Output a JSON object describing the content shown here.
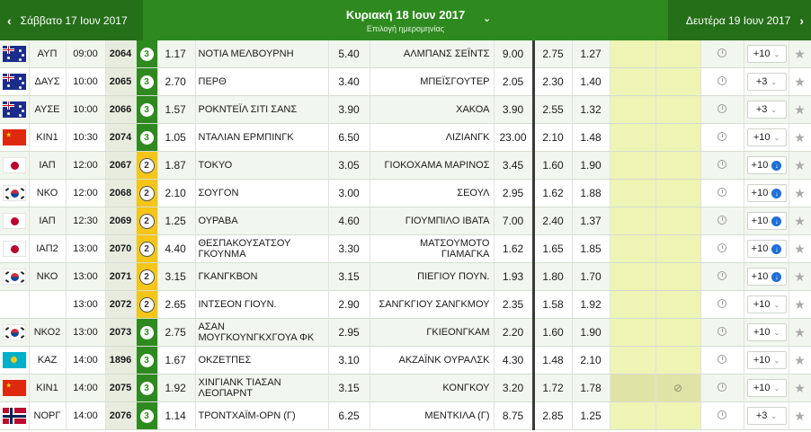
{
  "header": {
    "prev_date": "Σάββατο 17 Ιουν 2017",
    "current_date": "Κυριακή 18 Ιουν 2017",
    "date_picker_hint": "Επιλογή ημερομηνίας",
    "next_date": "Δευτέρα 19 Ιουν 2017",
    "prev_arrow": "‹",
    "next_arrow": "›",
    "dropdown_glyph": "⌄"
  },
  "matches": [
    {
      "flag": "au",
      "comp": "ΑΥΠ",
      "time": "09:00",
      "code": "2064",
      "min": "3",
      "o1": "1.17",
      "home": "ΝΟΤΙΑ ΜΕΛΒΟΥΡΝΗ",
      "ox": "5.40",
      "away": "ΑΛΜΠΑΝΣ ΣΕΪΝΤΣ",
      "o2": "9.00",
      "u": "2.75",
      "ov": "1.27",
      "markets": "+10",
      "live": false
    },
    {
      "flag": "au",
      "comp": "ΔΑΥΣ",
      "time": "10:00",
      "code": "2065",
      "min": "3",
      "o1": "2.70",
      "home": "ΠΕΡΘ",
      "ox": "3.40",
      "away": "ΜΠΕΪΣΓΟΥΤΕΡ",
      "o2": "2.05",
      "u": "2.30",
      "ov": "1.40",
      "markets": "+3",
      "live": false
    },
    {
      "flag": "au",
      "comp": "ΑΥΣΕ",
      "time": "10:00",
      "code": "2066",
      "min": "3",
      "o1": "1.57",
      "home": "ΡΟΚΝΤΕΪΛ ΣΙΤΙ ΣΑΝΣ",
      "ox": "3.90",
      "away": "ΧΑΚΟΑ",
      "o2": "3.90",
      "u": "2.55",
      "ov": "1.32",
      "markets": "+3",
      "live": false
    },
    {
      "flag": "cn",
      "comp": "ΚΙΝ1",
      "time": "10:30",
      "code": "2074",
      "min": "3",
      "o1": "1.05",
      "home": "ΝΤΑΛΙΑΝ ΕΡΜΠΙΝΓΚ",
      "ox": "6.50",
      "away": "ΛΙΖΙΑΝΓΚ",
      "o2": "23.00",
      "u": "2.10",
      "ov": "1.48",
      "markets": "+10",
      "live": false
    },
    {
      "flag": "jp",
      "comp": "ΙΑΠ",
      "time": "12:00",
      "code": "2067",
      "min": "2",
      "o1": "1.87",
      "home": "ΤΟΚΥΟ",
      "ox": "3.05",
      "away": "ΓΙΟΚΟΧΑΜΑ ΜΑΡΙΝΟΣ",
      "o2": "3.45",
      "u": "1.60",
      "ov": "1.90",
      "markets": "+10",
      "live": true
    },
    {
      "flag": "kr",
      "comp": "ΝΚΟ",
      "time": "12:00",
      "code": "2068",
      "min": "2",
      "o1": "2.10",
      "home": "ΣΟΥΓΟΝ",
      "ox": "3.00",
      "away": "ΣΕΟΥΛ",
      "o2": "2.95",
      "u": "1.62",
      "ov": "1.88",
      "markets": "+10",
      "live": true
    },
    {
      "flag": "jp",
      "comp": "ΙΑΠ",
      "time": "12:30",
      "code": "2069",
      "min": "2",
      "o1": "1.25",
      "home": "ΟΥΡΑΒΑ",
      "ox": "4.60",
      "away": "ΓΙΟΥΜΠΙΛΟ ΙΒΑΤΑ",
      "o2": "7.00",
      "u": "2.40",
      "ov": "1.37",
      "markets": "+10",
      "live": true
    },
    {
      "flag": "jp",
      "comp": "ΙΑΠ2",
      "time": "13:00",
      "code": "2070",
      "min": "2",
      "o1": "4.40",
      "home": "ΘΕΣΠΑΚΟΥΣΑΤΣΟΥ ΓΚΟΥΝΜΑ",
      "ox": "3.30",
      "away": "ΜΑΤΣΟΥΜΟΤΟ ΓΙΑΜΑΓΚΑ",
      "o2": "1.62",
      "u": "1.65",
      "ov": "1.85",
      "markets": "+10",
      "live": true
    },
    {
      "flag": "kr",
      "comp": "ΝΚΟ",
      "time": "13:00",
      "code": "2071",
      "min": "2",
      "o1": "3.15",
      "home": "ΓΚΑΝΓΚΒΟΝ",
      "ox": "3.15",
      "away": "ΠΙΕΓΙΟΥ ΠΟΥΝ.",
      "o2": "1.93",
      "u": "1.80",
      "ov": "1.70",
      "markets": "+10",
      "live": true
    },
    {
      "flag": "",
      "comp": "",
      "time": "13:00",
      "code": "2072",
      "min": "2",
      "o1": "2.65",
      "home": "ΙΝΤΣΕΟΝ ΓΙΟΥΝ.",
      "ox": "2.90",
      "away": "ΣΑΝΓΚΓΙΟΥ ΣΑΝΓΚΜΟΥ",
      "o2": "2.35",
      "u": "1.58",
      "ov": "1.92",
      "markets": "+10",
      "live": false
    },
    {
      "flag": "kr",
      "comp": "ΝΚΟ2",
      "time": "13:00",
      "code": "2073",
      "min": "3",
      "o1": "2.75",
      "home": "ΑΣΑΝ ΜΟΥΓΚΟΥΝΓΚΧΓΟΥΑ ΦΚ",
      "ox": "2.95",
      "away": "ΓΚΙΕΟΝΓΚΑΜ",
      "o2": "2.20",
      "u": "1.60",
      "ov": "1.90",
      "markets": "+10",
      "live": false
    },
    {
      "flag": "kz",
      "comp": "ΚΑΖ",
      "time": "14:00",
      "code": "1896",
      "min": "3",
      "o1": "1.67",
      "home": "ΟΚΖΕΤΠΕΣ",
      "ox": "3.10",
      "away": "ΑΚΖΑΪΝΚ ΟΥΡΑΛΣΚ",
      "o2": "4.30",
      "u": "1.48",
      "ov": "2.10",
      "markets": "+10",
      "live": false
    },
    {
      "flag": "cn",
      "comp": "ΚΙΝ1",
      "time": "14:00",
      "code": "2075",
      "min": "3",
      "o1": "1.92",
      "home": "ΧΙΝΓΙΑΝΚ ΤΙΑΣΑΝ ΛΕΟΠΑΡΝΤ",
      "ox": "3.15",
      "away": "ΚΟΝΓΚΟΥ",
      "o2": "3.20",
      "u": "1.72",
      "ov": "1.78",
      "markets": "+10",
      "live": false,
      "muted": true
    },
    {
      "flag": "no",
      "comp": "ΝΟΡΓ",
      "time": "14:00",
      "code": "2076",
      "min": "3",
      "o1": "1.14",
      "home": "ΤΡΟΝΤΧΑΪΜ-ΟΡΝ (Γ)",
      "ox": "6.25",
      "away": "ΜΕΝΤΚΙΛΑ (Γ)",
      "o2": "8.75",
      "u": "2.85",
      "ov": "1.25",
      "markets": "+3",
      "live": false
    }
  ]
}
